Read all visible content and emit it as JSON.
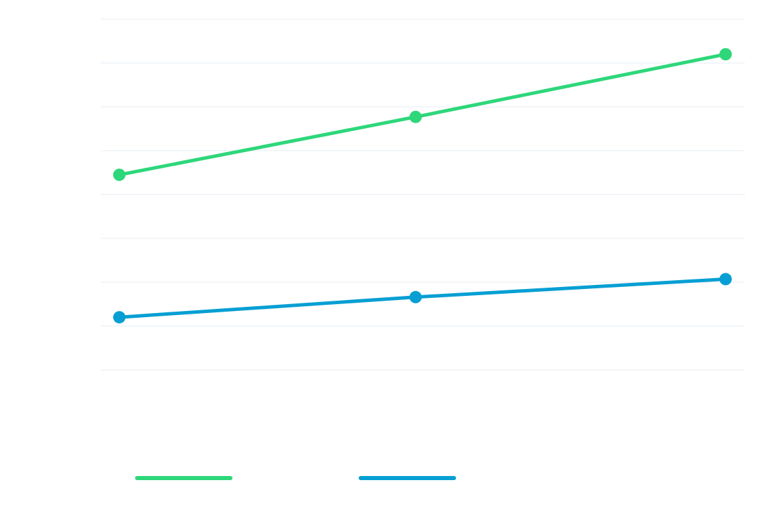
{
  "chart_data": {
    "type": "line",
    "title": "",
    "xlabel": "",
    "ylabel": "",
    "x": [
      1,
      2,
      3
    ],
    "ylim": [
      0,
      8
    ],
    "yticks": [
      0,
      1,
      2,
      3,
      4,
      5,
      6,
      7,
      8
    ],
    "grid": true,
    "legend_position": "bottom-left",
    "series": [
      {
        "name": "",
        "color": "#2ed77a",
        "values": [
          4.45,
          5.77,
          7.2
        ]
      },
      {
        "name": "",
        "color": "#079fd3",
        "values": [
          1.2,
          1.66,
          2.07
        ]
      }
    ]
  }
}
